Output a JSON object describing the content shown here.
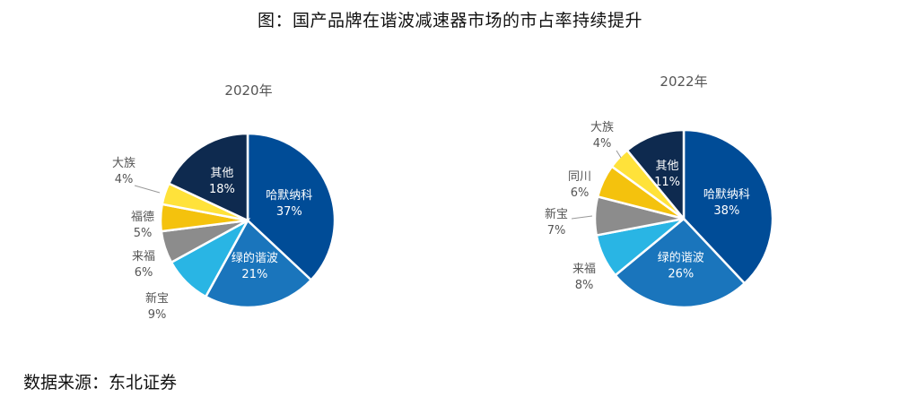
{
  "figure": {
    "title": "图：国产品牌在谐波减速器市场的市占率持续提升",
    "source": "数据来源：东北证券"
  },
  "chart_data": [
    {
      "type": "pie",
      "title": "2020年",
      "slices": [
        {
          "name": "哈默纳科",
          "value": 37,
          "label": "37%",
          "color": "#004C97"
        },
        {
          "name": "绿的谐波",
          "value": 21,
          "label": "21%",
          "color": "#1A75BC"
        },
        {
          "name": "新宝",
          "value": 9,
          "label": "9%",
          "color": "#29B5E4"
        },
        {
          "name": "来福",
          "value": 6,
          "label": "6%",
          "color": "#8C8C8C"
        },
        {
          "name": "福德",
          "value": 5,
          "label": "5%",
          "color": "#F4C20D"
        },
        {
          "name": "大族",
          "value": 4,
          "label": "4%",
          "color": "#FFE23A"
        },
        {
          "name": "其他",
          "value": 18,
          "label": "18%",
          "color": "#0E2A4F"
        }
      ]
    },
    {
      "type": "pie",
      "title": "2022年",
      "slices": [
        {
          "name": "哈默纳科",
          "value": 38,
          "label": "38%",
          "color": "#004C97"
        },
        {
          "name": "绿的谐波",
          "value": 26,
          "label": "26%",
          "color": "#1A75BC"
        },
        {
          "name": "来福",
          "value": 8,
          "label": "8%",
          "color": "#29B5E4"
        },
        {
          "name": "新宝",
          "value": 7,
          "label": "7%",
          "color": "#8C8C8C"
        },
        {
          "name": "同川",
          "value": 6,
          "label": "6%",
          "color": "#F4C20D"
        },
        {
          "name": "大族",
          "value": 4,
          "label": "4%",
          "color": "#FFE23A"
        },
        {
          "name": "其他",
          "value": 11,
          "label": "11%",
          "color": "#0E2A4F"
        }
      ]
    }
  ]
}
